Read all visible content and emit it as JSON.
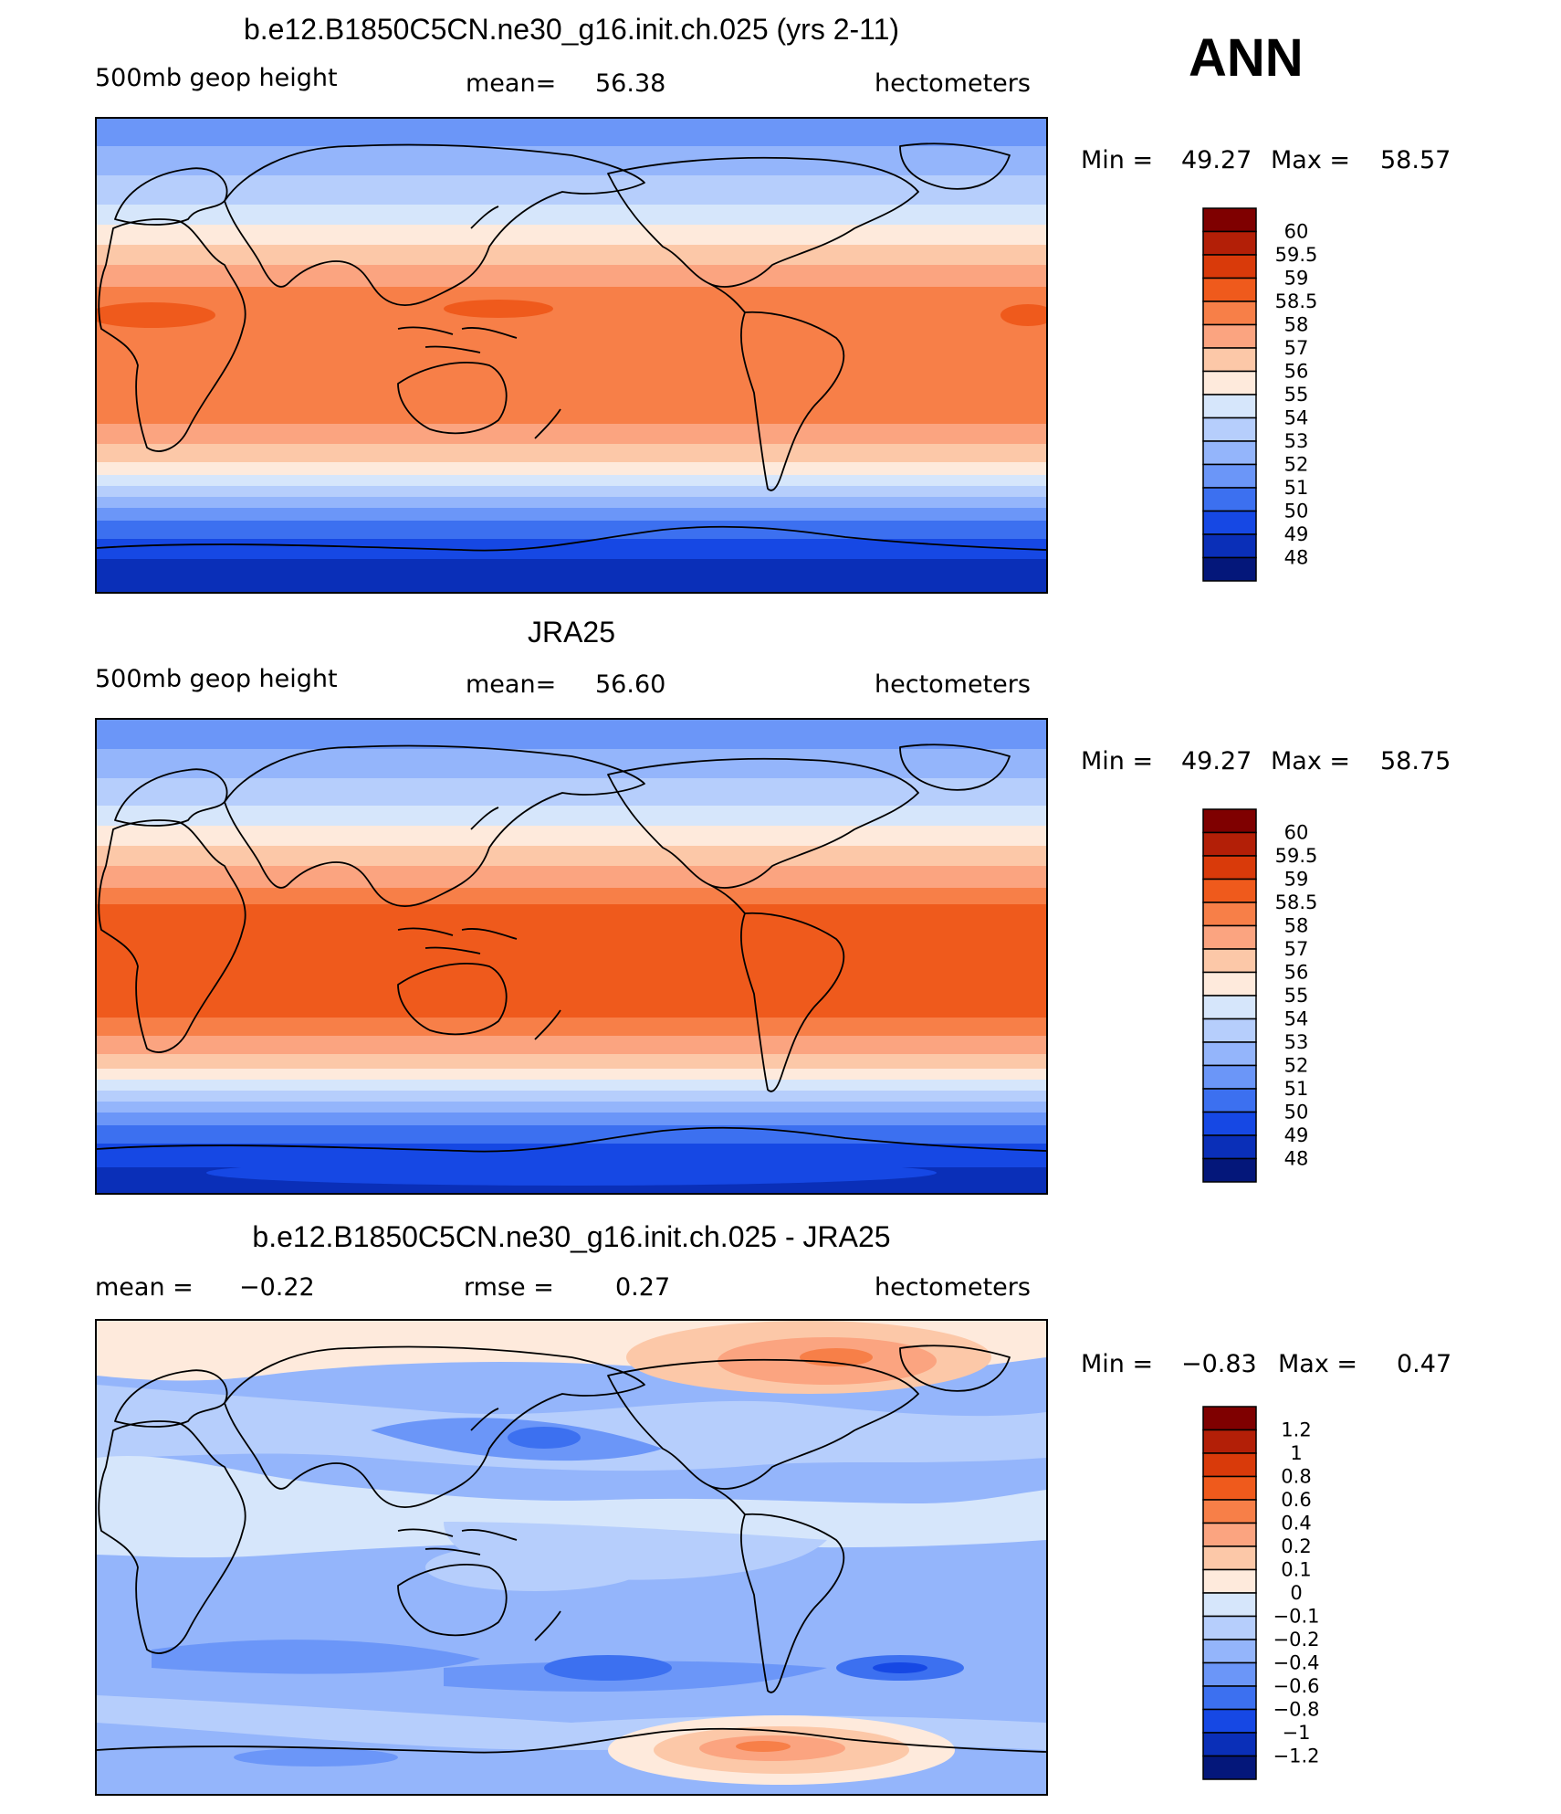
{
  "season": "ANN",
  "chart_data": [
    {
      "type": "heatmap",
      "title": "b.e12.B1850C5CN.ne30_g16.init.ch.025 (yrs 2-11)",
      "variable": "500mb geop height",
      "units": "hectometers",
      "mean_label": "mean=",
      "mean": "56.38",
      "min_label": "Min =",
      "min": "49.27",
      "max_label": "Max =",
      "max": "58.57",
      "levels": [
        "60",
        "59.5",
        "59",
        "58.5",
        "58",
        "57",
        "56",
        "55",
        "54",
        "53",
        "52",
        "51",
        "50",
        "49",
        "48"
      ],
      "colors": [
        "#7f0000",
        "#b31f07",
        "#d93a0a",
        "#ef5a1c",
        "#f77f48",
        "#fba480",
        "#fcc8a8",
        "#feeadc",
        "#d6e6fb",
        "#b6cefc",
        "#94b5fb",
        "#6b96f8",
        "#3c70f0",
        "#1648e4",
        "#0a2fb8",
        "#04177a"
      ]
    },
    {
      "type": "heatmap",
      "title": "JRA25",
      "variable": "500mb geop height",
      "units": "hectometers",
      "mean_label": "mean=",
      "mean": "56.60",
      "min_label": "Min =",
      "min": "49.27",
      "max_label": "Max =",
      "max": "58.75",
      "levels": [
        "60",
        "59.5",
        "59",
        "58.5",
        "58",
        "57",
        "56",
        "55",
        "54",
        "53",
        "52",
        "51",
        "50",
        "49",
        "48"
      ],
      "colors": [
        "#7f0000",
        "#b31f07",
        "#d93a0a",
        "#ef5a1c",
        "#f77f48",
        "#fba480",
        "#fcc8a8",
        "#feeadc",
        "#d6e6fb",
        "#b6cefc",
        "#94b5fb",
        "#6b96f8",
        "#3c70f0",
        "#1648e4",
        "#0a2fb8",
        "#04177a"
      ]
    },
    {
      "type": "heatmap",
      "title": "b.e12.B1850C5CN.ne30_g16.init.ch.025 - JRA25",
      "mean_label": "mean =",
      "mean": "−0.22",
      "rmse_label": "rmse =",
      "rmse": "0.27",
      "units": "hectometers",
      "min_label": "Min =",
      "min": "−0.83",
      "max_label": "Max =",
      "max": "0.47",
      "levels": [
        "1.2",
        "1",
        "0.8",
        "0.6",
        "0.4",
        "0.2",
        "0.1",
        "0",
        "−0.1",
        "−0.2",
        "−0.4",
        "−0.6",
        "−0.8",
        "−1",
        "−1.2"
      ],
      "colors": [
        "#7f0000",
        "#b31f07",
        "#d93a0a",
        "#ef5a1c",
        "#f77f48",
        "#fba480",
        "#fcc8a8",
        "#feeadc",
        "#d6e6fb",
        "#b6cefc",
        "#94b5fb",
        "#6b96f8",
        "#3c70f0",
        "#1648e4",
        "#0a2fb8",
        "#04177a"
      ]
    }
  ]
}
